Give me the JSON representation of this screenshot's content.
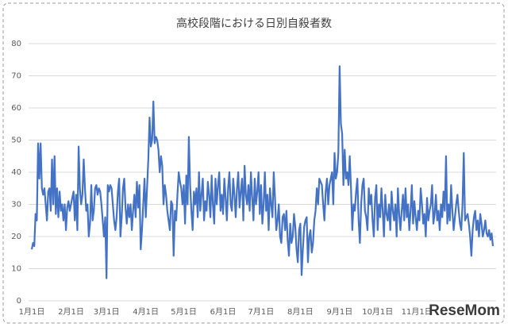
{
  "chart_data": {
    "type": "line",
    "title": "高校段階における日別自殺者数",
    "color": "#4472c4",
    "ylim": [
      0,
      80
    ],
    "yticks": [
      0,
      10,
      20,
      30,
      40,
      50,
      60,
      70,
      80
    ],
    "grid": true,
    "watermark": "ReseMom",
    "categories": [
      "1月1日",
      null,
      null,
      null,
      null,
      null,
      null,
      null,
      null,
      null,
      null,
      null,
      null,
      null,
      null,
      null,
      null,
      null,
      null,
      null,
      null,
      null,
      null,
      null,
      null,
      null,
      null,
      null,
      null,
      null,
      null,
      "2月1日",
      null,
      null,
      null,
      null,
      null,
      null,
      null,
      null,
      null,
      null,
      null,
      null,
      null,
      null,
      null,
      null,
      null,
      null,
      null,
      null,
      null,
      null,
      null,
      null,
      null,
      null,
      null,
      "3月1日",
      null,
      null,
      null,
      null,
      null,
      null,
      null,
      null,
      null,
      null,
      null,
      null,
      null,
      null,
      null,
      null,
      null,
      null,
      null,
      null,
      null,
      null,
      null,
      null,
      null,
      null,
      null,
      null,
      null,
      null,
      "4月1日",
      null,
      null,
      null,
      null,
      null,
      null,
      null,
      null,
      null,
      null,
      null,
      null,
      null,
      null,
      null,
      null,
      null,
      null,
      null,
      null,
      null,
      null,
      null,
      null,
      null,
      null,
      null,
      null,
      null,
      "5月1日",
      null,
      null,
      null,
      null,
      null,
      null,
      null,
      null,
      null,
      null,
      null,
      null,
      null,
      null,
      null,
      null,
      null,
      null,
      null,
      null,
      null,
      null,
      null,
      null,
      null,
      null,
      null,
      null,
      null,
      null,
      "6月1日",
      null,
      null,
      null,
      null,
      null,
      null,
      null,
      null,
      null,
      null,
      null,
      null,
      null,
      null,
      null,
      null,
      null,
      null,
      null,
      null,
      null,
      null,
      null,
      null,
      null,
      null,
      null,
      null,
      null,
      "7月1日",
      null,
      null,
      null,
      null,
      null,
      null,
      null,
      null,
      null,
      null,
      null,
      null,
      null,
      null,
      null,
      null,
      null,
      null,
      null,
      null,
      null,
      null,
      null,
      null,
      null,
      null,
      null,
      null,
      null,
      null,
      "8月1日",
      null,
      null,
      null,
      null,
      null,
      null,
      null,
      null,
      null,
      null,
      null,
      null,
      null,
      null,
      null,
      null,
      null,
      null,
      null,
      null,
      null,
      null,
      null,
      null,
      null,
      null,
      null,
      null,
      null,
      null,
      "9月1日",
      null,
      null,
      null,
      null,
      null,
      null,
      null,
      null,
      null,
      null,
      null,
      null,
      null,
      null,
      null,
      null,
      null,
      null,
      null,
      null,
      null,
      null,
      null,
      null,
      null,
      null,
      null,
      null,
      null,
      "10月1日",
      null,
      null,
      null,
      null,
      null,
      null,
      null,
      null,
      null,
      null,
      null,
      null,
      null,
      null,
      null,
      null,
      null,
      null,
      null,
      null,
      null,
      null,
      null,
      null,
      null,
      null,
      null,
      null,
      null,
      null,
      "11月1日",
      null,
      null,
      null,
      null,
      null,
      null,
      null,
      null,
      null,
      null,
      null,
      null,
      null,
      null,
      null,
      null,
      null,
      null,
      null,
      null,
      null,
      null,
      null,
      null,
      null,
      null,
      null,
      null,
      null,
      null,
      null,
      null,
      null,
      null,
      null,
      null,
      null,
      null,
      null,
      null,
      null,
      null,
      null,
      null,
      null,
      null,
      null,
      null,
      null,
      null,
      null,
      null,
      null,
      null,
      null,
      null,
      null,
      null,
      null,
      null
    ],
    "values": [
      16,
      18,
      17,
      27,
      25,
      49,
      38,
      49,
      35,
      33,
      35,
      30,
      25,
      34,
      35,
      28,
      44,
      30,
      45,
      27,
      35,
      26,
      34,
      28,
      30,
      25,
      30,
      22,
      29,
      31,
      28,
      30,
      32,
      34,
      25,
      33,
      22,
      48,
      35,
      30,
      33,
      44,
      35,
      28,
      30,
      20,
      24,
      36,
      25,
      28,
      35,
      36,
      33,
      35,
      34,
      30,
      25,
      20,
      26,
      7,
      36,
      34,
      36,
      35,
      30,
      25,
      22,
      26,
      34,
      38,
      20,
      26,
      35,
      38,
      29,
      24,
      30,
      26,
      30,
      22,
      28,
      33,
      26,
      37,
      29,
      36,
      16,
      22,
      30,
      38,
      26,
      35,
      44,
      57,
      48,
      50,
      62,
      49,
      51,
      50,
      47,
      40,
      45,
      42,
      30,
      36,
      33,
      28,
      25,
      22,
      31,
      30,
      14,
      28,
      25,
      33,
      40,
      37,
      35,
      30,
      36,
      24,
      39,
      30,
      51,
      36,
      28,
      22,
      34,
      30,
      35,
      26,
      40,
      28,
      33,
      38,
      25,
      31,
      28,
      37,
      33,
      26,
      39,
      30,
      24,
      38,
      30,
      36,
      40,
      28,
      33,
      27,
      38,
      32,
      25,
      35,
      40,
      30,
      28,
      38,
      33,
      26,
      35,
      40,
      29,
      34,
      38,
      25,
      42,
      33,
      30,
      36,
      28,
      40,
      32,
      25,
      38,
      30,
      34,
      40,
      27,
      36,
      24,
      30,
      40,
      28,
      33,
      22,
      35,
      30,
      26,
      40,
      32,
      22,
      25,
      30,
      20,
      18,
      26,
      27,
      22,
      28,
      19,
      14,
      24,
      18,
      20,
      27,
      23,
      16,
      12,
      22,
      24,
      8,
      16,
      23,
      25,
      26,
      12,
      20,
      22,
      15,
      18,
      25,
      28,
      35,
      30,
      38,
      37,
      36,
      30,
      25,
      34,
      38,
      30,
      36,
      38,
      40,
      30,
      46,
      38,
      40,
      46,
      73,
      55,
      52,
      36,
      47,
      38,
      40,
      36,
      45,
      35,
      22,
      30,
      28,
      34,
      38,
      25,
      18,
      30,
      36,
      38,
      28,
      26,
      22,
      35,
      30,
      33,
      25,
      20,
      32,
      36,
      22,
      30,
      26,
      35,
      28,
      20,
      33,
      27,
      25,
      30,
      22,
      34,
      28,
      25,
      30,
      20,
      35,
      27,
      22,
      28,
      33,
      25,
      35,
      26,
      30,
      22,
      28,
      36,
      24,
      31,
      26,
      22,
      28,
      25,
      35,
      30,
      24,
      27,
      20,
      32,
      25,
      28,
      30,
      36,
      24,
      27,
      33,
      25,
      28,
      22,
      30,
      26,
      34,
      28,
      45,
      24,
      30,
      25,
      36,
      28,
      22,
      26,
      30,
      33,
      28,
      24,
      22,
      30,
      46,
      25,
      26,
      27,
      24,
      20,
      14,
      22,
      26,
      28,
      22,
      25,
      20,
      27,
      24,
      20,
      22,
      25,
      21,
      20,
      22,
      19,
      21,
      17
    ]
  }
}
